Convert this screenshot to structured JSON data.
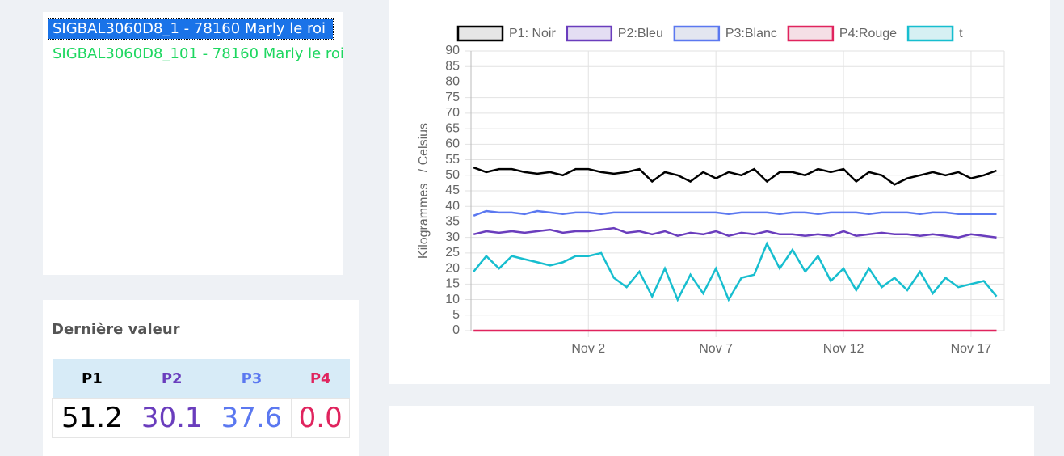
{
  "device_list": {
    "items": [
      "SIGBAL3060D8_1 - 78160 Marly le roi",
      "SIGBAL3060D8_101 - 78160 Marly le roi"
    ]
  },
  "last_value": {
    "title": "Dernière valeur",
    "headers": [
      "P1",
      "P2",
      "P3",
      "P4"
    ],
    "values": [
      "51.2",
      "30.1",
      "37.6",
      "0.0"
    ]
  },
  "chart_data": {
    "type": "line",
    "ylabel": "Kilogrammes   / Celsius",
    "legend": "top",
    "grid": true,
    "x": [
      -2.5,
      -2,
      -1.5,
      -1,
      -0.5,
      0,
      0.5,
      1,
      1.5,
      2,
      2.5,
      3,
      3.5,
      4,
      4.5,
      5,
      5.5,
      6,
      6.5,
      7,
      7.5,
      8,
      8.5,
      9,
      9.5,
      10,
      10.5,
      11,
      11.5,
      12,
      12.5,
      13,
      13.5,
      14,
      14.5,
      15,
      15.5,
      16,
      16.5,
      17,
      17.5,
      18
    ],
    "xlim": [
      -2.6,
      18.3
    ],
    "xticks": [
      {
        "value": 2,
        "label": "Nov 2"
      },
      {
        "value": 7,
        "label": "Nov 7"
      },
      {
        "value": 12,
        "label": "Nov 12"
      },
      {
        "value": 17,
        "label": "Nov 17"
      }
    ],
    "ylim": [
      0,
      90
    ],
    "yticks": [
      0,
      5,
      10,
      15,
      20,
      25,
      30,
      35,
      40,
      45,
      50,
      55,
      60,
      65,
      70,
      75,
      80,
      85,
      90
    ],
    "series": [
      {
        "name": "P1: Noir",
        "color": "#000000",
        "fill": "#e6e6e6",
        "values": [
          52.5,
          51,
          52,
          52,
          51,
          50.5,
          51,
          50,
          52,
          52,
          51,
          50.5,
          51,
          52,
          48,
          51,
          50,
          48,
          51,
          49,
          51,
          50,
          52,
          48,
          51,
          51,
          50,
          52,
          51,
          52,
          48,
          51,
          50,
          47,
          49,
          50,
          51,
          50,
          51,
          49,
          50,
          51.5
        ]
      },
      {
        "name": "P2:Bleu",
        "color": "#6a3dbd",
        "fill": "#e4def3",
        "values": [
          31,
          32,
          31.5,
          32,
          31.5,
          32,
          32.5,
          31.5,
          32,
          32,
          32.5,
          33,
          31.5,
          32,
          31,
          32,
          30.5,
          31.5,
          31,
          32,
          30.5,
          31.5,
          31,
          32,
          31,
          31,
          30.5,
          31,
          30.5,
          32,
          30.5,
          31,
          31.5,
          31,
          31,
          30.5,
          31,
          30.5,
          30,
          31,
          30.5,
          30
        ]
      },
      {
        "name": "P3:Blanc",
        "color": "#5b78f0",
        "fill": "#e3e6f0",
        "values": [
          37,
          38.5,
          38,
          38,
          37.5,
          38.5,
          38,
          37.5,
          38,
          38,
          37.5,
          38,
          38,
          38,
          38,
          38,
          38,
          38,
          38,
          38,
          37.5,
          38,
          38,
          38,
          37.5,
          38,
          38,
          37.5,
          38,
          38,
          38,
          37.5,
          38,
          38,
          38,
          37.5,
          38,
          38,
          37.5,
          37.5,
          37.5,
          37.5
        ]
      },
      {
        "name": "P4:Rouge",
        "color": "#e0245e",
        "fill": "#f5dfe6",
        "values": [
          0,
          0,
          0,
          0,
          0,
          0,
          0,
          0,
          0,
          0,
          0,
          0,
          0,
          0,
          0,
          0,
          0,
          0,
          0,
          0,
          0,
          0,
          0,
          0,
          0,
          0,
          0,
          0,
          0,
          0,
          0,
          0,
          0,
          0,
          0,
          0,
          0,
          0,
          0,
          0,
          0,
          0
        ]
      },
      {
        "name": "t",
        "color": "#17becf",
        "fill": "#d6f0f3",
        "values": [
          19,
          24,
          20,
          24,
          23,
          22,
          21,
          22,
          24,
          24,
          25,
          17,
          14,
          19,
          11,
          20,
          10,
          18,
          12,
          20,
          10,
          17,
          18,
          28,
          20,
          26,
          19,
          24,
          16,
          20,
          13,
          20,
          14,
          17,
          13,
          19,
          12,
          17,
          14,
          15,
          16,
          11
        ]
      }
    ]
  }
}
